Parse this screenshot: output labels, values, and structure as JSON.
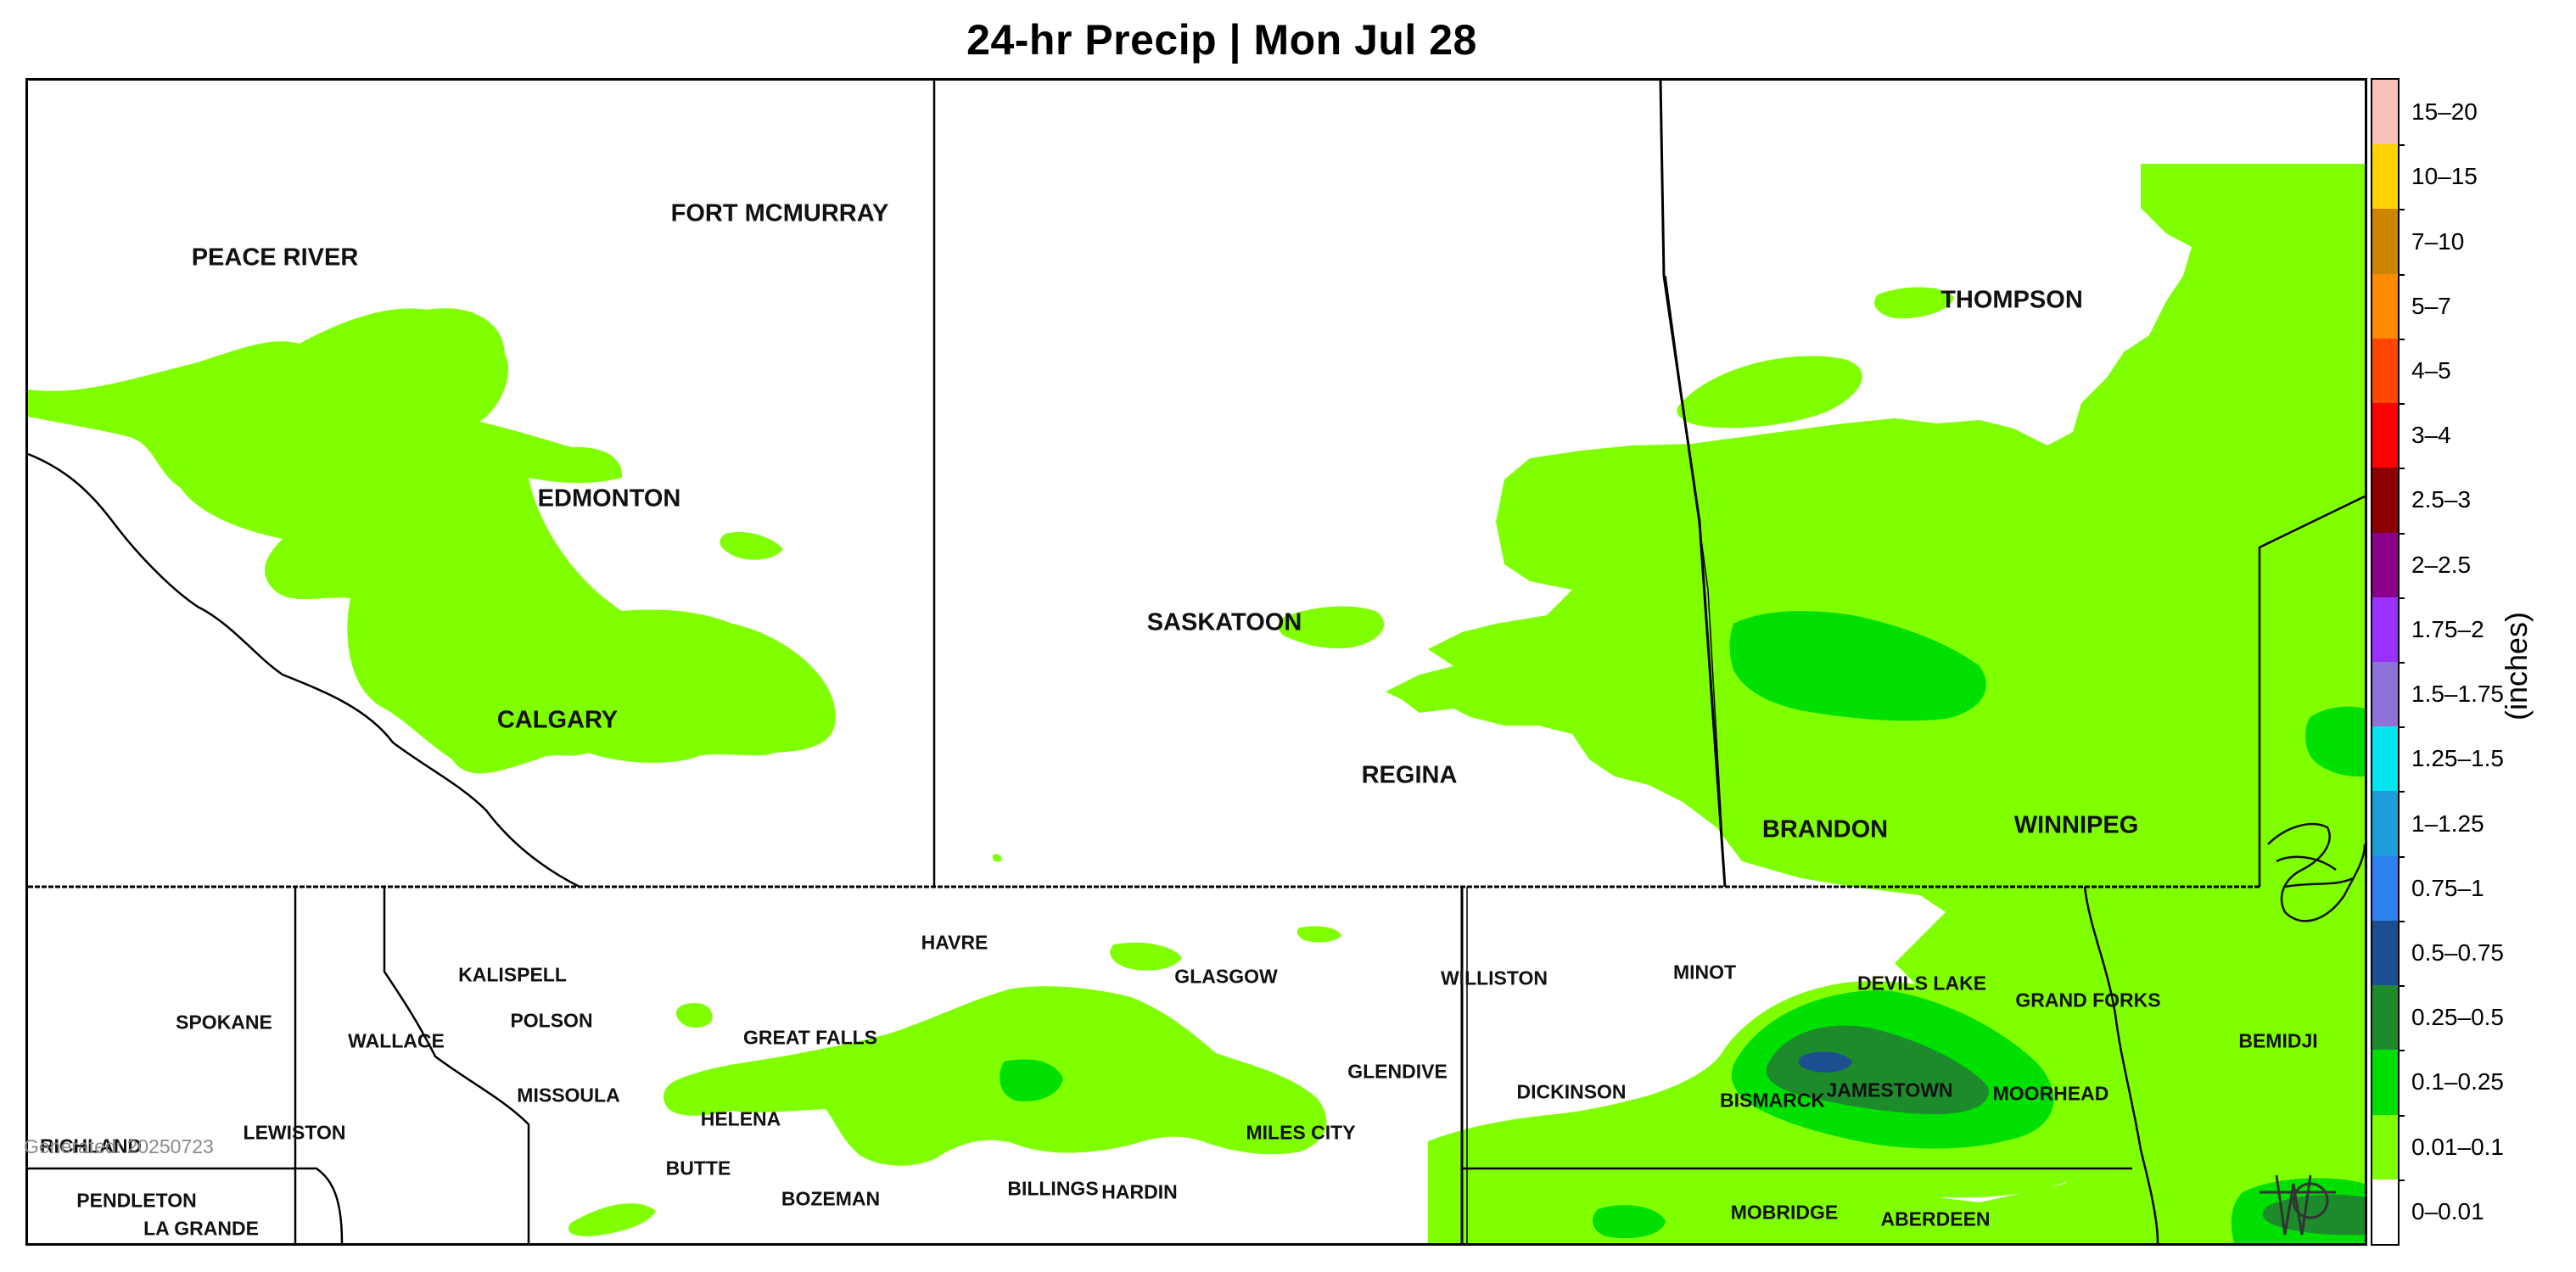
{
  "title": "24-hr Precip | Mon Jul 28",
  "generated": "Generated: 20250723",
  "units_label": "(inches)",
  "colors": {
    "light_green": "#7fff00",
    "medium_green": "#00e000",
    "dark_green": "#1d8a2c",
    "dark_blue": "#1b4f8f",
    "border": "#000000"
  },
  "legend": [
    {
      "label": "15–20",
      "color": "#f8c0b8"
    },
    {
      "label": "10–15",
      "color": "#ffd400"
    },
    {
      "label": "7–10",
      "color": "#cd8500"
    },
    {
      "label": "5–7",
      "color": "#ff8c00"
    },
    {
      "label": "4–5",
      "color": "#ff4500"
    },
    {
      "label": "3–4",
      "color": "#ff0000"
    },
    {
      "label": "2.5–3",
      "color": "#8b0000"
    },
    {
      "label": "2–2.5",
      "color": "#8b008b"
    },
    {
      "label": "1.75–2",
      "color": "#9932ff"
    },
    {
      "label": "1.5–1.75",
      "color": "#8f72d8"
    },
    {
      "label": "1.25–1.5",
      "color": "#00e5ee"
    },
    {
      "label": "1–1.25",
      "color": "#1e9ed8"
    },
    {
      "label": "0.75–1",
      "color": "#2b82f0"
    },
    {
      "label": "0.5–0.75",
      "color": "#1b4f8f"
    },
    {
      "label": "0.25–0.5",
      "color": "#1d8a2c"
    },
    {
      "label": "0.1–0.25",
      "color": "#00e000"
    },
    {
      "label": "0.01–0.1",
      "color": "#7fff00"
    },
    {
      "label": "0–0.01",
      "color": "#ffffff"
    }
  ],
  "cities": {
    "peace_river": "PEACE RIVER",
    "fort_mcmurray": "FORT MCMURRAY",
    "edmonton": "EDMONTON",
    "calgary": "CALGARY",
    "saskatoon": "SASKATOON",
    "regina": "REGINA",
    "thompson": "THOMPSON",
    "brandon": "BRANDON",
    "winnipeg": "WINNIPEG",
    "kalispell": "KALISPELL",
    "havre": "HAVRE",
    "glasgow": "GLASGOW",
    "williston": "WILLISTON",
    "minot": "MINOT",
    "devils_lake": "DEVILS LAKE",
    "grand_forks": "GRAND FORKS",
    "bemidji": "BEMIDJI",
    "spokane": "SPOKANE",
    "wallace": "WALLACE",
    "polson": "POLSON",
    "great_falls": "GREAT FALLS",
    "missoula": "MISSOULA",
    "glendive": "GLENDIVE",
    "dickinson": "DICKINSON",
    "bismarck": "BISMARCK",
    "jamestown": "JAMESTOWN",
    "moorhead": "MOORHEAD",
    "richland": "RICHLAND",
    "lewiston": "LEWISTON",
    "helena": "HELENA",
    "miles_city": "MILES CITY",
    "butte": "BUTTE",
    "pendleton": "PENDLETON",
    "la_grande": "LA GRANDE",
    "bozeman": "BOZEMAN",
    "billings": "BILLINGS",
    "hardin": "HARDIN",
    "mobridge": "MOBRIDGE",
    "aberdeen": "ABERDEEN"
  }
}
